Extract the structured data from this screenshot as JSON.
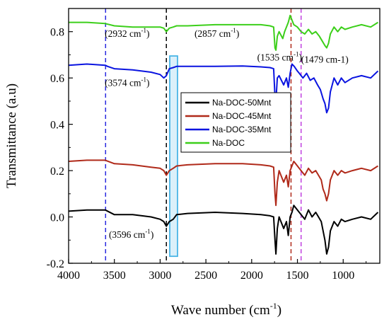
{
  "chart_data": {
    "type": "line",
    "title": "",
    "xlabel": "Wave number (cm",
    "xlabel_sup": "-1",
    "xlabel_end": ")",
    "ylabel": "Transmittance (a.u)",
    "xlim": [
      4000,
      600
    ],
    "ylim": [
      -0.2,
      0.9
    ],
    "x_reversed": true,
    "x_ticks": [
      4000,
      3500,
      3000,
      2500,
      2000,
      1500,
      1000
    ],
    "x_tick_labels": [
      "4000",
      "3500",
      "3000",
      "2500",
      "2000",
      "1500",
      "1000"
    ],
    "y_ticks": [
      -0.2,
      0.0,
      0.2,
      0.4,
      0.6,
      0.8
    ],
    "y_tick_labels": [
      "-0.2",
      "0.0",
      "0.2",
      "0.4",
      "0.6",
      "0.8"
    ],
    "legend_position": "center-right",
    "series": [
      {
        "name": "Na-DOC-50Mnt",
        "color": "#000000",
        "x": [
          4000,
          3800,
          3600,
          3500,
          3300,
          3100,
          3000,
          2960,
          2932,
          2900,
          2857,
          2820,
          2700,
          2400,
          2100,
          1900,
          1800,
          1760,
          1745,
          1735,
          1720,
          1700,
          1650,
          1620,
          1600,
          1580,
          1560,
          1540,
          1500,
          1460,
          1420,
          1380,
          1340,
          1300,
          1270,
          1240,
          1220,
          1200,
          1180,
          1160,
          1140,
          1100,
          1060,
          1020,
          980,
          900,
          800,
          700,
          620
        ],
        "y": [
          0.025,
          0.03,
          0.03,
          0.01,
          0.01,
          0.0,
          -0.01,
          -0.02,
          -0.04,
          -0.02,
          -0.01,
          0.01,
          0.015,
          0.02,
          0.015,
          0.01,
          0.005,
          0.0,
          -0.1,
          -0.16,
          -0.05,
          0.0,
          -0.05,
          -0.02,
          -0.08,
          0.0,
          0.02,
          0.05,
          0.03,
          0.01,
          -0.01,
          0.03,
          0.0,
          0.02,
          0.0,
          -0.02,
          -0.06,
          -0.1,
          -0.16,
          -0.13,
          -0.06,
          -0.02,
          -0.04,
          -0.01,
          -0.02,
          -0.01,
          0.0,
          -0.01,
          0.02
        ]
      },
      {
        "name": "Na-DOC-45Mnt",
        "color": "#b02a1a",
        "x": [
          4000,
          3800,
          3600,
          3500,
          3300,
          3100,
          3000,
          2960,
          2932,
          2900,
          2857,
          2820,
          2700,
          2400,
          2100,
          1900,
          1800,
          1760,
          1745,
          1735,
          1720,
          1700,
          1650,
          1620,
          1600,
          1580,
          1560,
          1540,
          1500,
          1460,
          1420,
          1380,
          1340,
          1300,
          1270,
          1240,
          1220,
          1200,
          1180,
          1160,
          1140,
          1100,
          1060,
          1020,
          980,
          900,
          800,
          700,
          620
        ],
        "y": [
          0.24,
          0.245,
          0.245,
          0.23,
          0.225,
          0.215,
          0.21,
          0.2,
          0.18,
          0.2,
          0.21,
          0.22,
          0.225,
          0.23,
          0.23,
          0.225,
          0.22,
          0.215,
          0.1,
          0.05,
          0.15,
          0.2,
          0.15,
          0.18,
          0.13,
          0.2,
          0.22,
          0.24,
          0.22,
          0.2,
          0.18,
          0.21,
          0.19,
          0.2,
          0.18,
          0.16,
          0.12,
          0.1,
          0.07,
          0.1,
          0.16,
          0.2,
          0.18,
          0.2,
          0.19,
          0.2,
          0.21,
          0.2,
          0.22
        ]
      },
      {
        "name": "Na-DOC-35Mnt",
        "color": "#0a14e0",
        "x": [
          4000,
          3800,
          3600,
          3574,
          3500,
          3300,
          3100,
          3000,
          2960,
          2932,
          2900,
          2857,
          2820,
          2700,
          2400,
          2100,
          1900,
          1800,
          1760,
          1745,
          1735,
          1720,
          1700,
          1650,
          1620,
          1600,
          1580,
          1560,
          1535,
          1500,
          1479,
          1440,
          1400,
          1360,
          1320,
          1280,
          1250,
          1220,
          1200,
          1180,
          1160,
          1140,
          1100,
          1060,
          1020,
          980,
          900,
          800,
          700,
          620
        ],
        "y": [
          0.655,
          0.66,
          0.655,
          0.65,
          0.64,
          0.635,
          0.625,
          0.615,
          0.6,
          0.61,
          0.64,
          0.645,
          0.65,
          0.65,
          0.65,
          0.652,
          0.648,
          0.645,
          0.64,
          0.52,
          0.5,
          0.6,
          0.61,
          0.57,
          0.6,
          0.56,
          0.62,
          0.66,
          0.65,
          0.63,
          0.62,
          0.6,
          0.62,
          0.59,
          0.6,
          0.57,
          0.55,
          0.51,
          0.49,
          0.45,
          0.47,
          0.54,
          0.6,
          0.57,
          0.6,
          0.58,
          0.6,
          0.61,
          0.6,
          0.63
        ]
      },
      {
        "name": "Na-DOC",
        "color": "#3ccf1a",
        "x": [
          4000,
          3800,
          3600,
          3500,
          3300,
          3100,
          3000,
          2960,
          2932,
          2900,
          2857,
          2820,
          2700,
          2400,
          2100,
          1900,
          1800,
          1760,
          1745,
          1735,
          1720,
          1700,
          1660,
          1640,
          1620,
          1600,
          1580,
          1560,
          1540,
          1500,
          1460,
          1420,
          1380,
          1340,
          1300,
          1260,
          1230,
          1200,
          1180,
          1160,
          1140,
          1100,
          1060,
          1020,
          980,
          900,
          800,
          700,
          620
        ],
        "y": [
          0.84,
          0.84,
          0.835,
          0.825,
          0.82,
          0.82,
          0.82,
          0.815,
          0.8,
          0.815,
          0.82,
          0.825,
          0.825,
          0.83,
          0.83,
          0.83,
          0.825,
          0.82,
          0.73,
          0.72,
          0.78,
          0.8,
          0.77,
          0.8,
          0.82,
          0.84,
          0.87,
          0.85,
          0.83,
          0.82,
          0.8,
          0.79,
          0.81,
          0.79,
          0.8,
          0.78,
          0.76,
          0.74,
          0.73,
          0.75,
          0.79,
          0.82,
          0.8,
          0.82,
          0.81,
          0.82,
          0.83,
          0.82,
          0.84
        ]
      }
    ],
    "vertical_lines": [
      {
        "x": 3596,
        "color": "#2a2ae0",
        "style": "dashed"
      },
      {
        "x": 2932,
        "color": "#000000",
        "style": "dashed"
      },
      {
        "x": 1570,
        "color": "#b02a1a",
        "style": "dashed"
      },
      {
        "x": 1460,
        "color": "#c040e0",
        "style": "dashed"
      }
    ],
    "highlight_band": {
      "x_from": 2895,
      "x_to": 2810,
      "y_from": -0.17,
      "y_to": 0.695,
      "color": "#49b5e6"
    },
    "annotations": [
      {
        "text": "(2932 cm",
        "sup": "-1",
        "end": ")",
        "x": 3605,
        "y": 0.778
      },
      {
        "text": "(2857 cm",
        "sup": "-1",
        "end": ")",
        "x": 2625,
        "y": 0.778
      },
      {
        "text": "(1535 cm",
        "sup": "-1",
        "end": ")",
        "x": 1940,
        "y": 0.676
      },
      {
        "text": "(1479 cm-1)",
        "sup": "",
        "end": "",
        "x": 1460,
        "y": 0.666
      },
      {
        "text": "(3574 cm",
        "sup": "-1",
        "end": ")",
        "x": 3605,
        "y": 0.566
      },
      {
        "text": "(3596 cm",
        "sup": "-1",
        "end": ")",
        "x": 3560,
        "y": -0.09
      }
    ]
  }
}
